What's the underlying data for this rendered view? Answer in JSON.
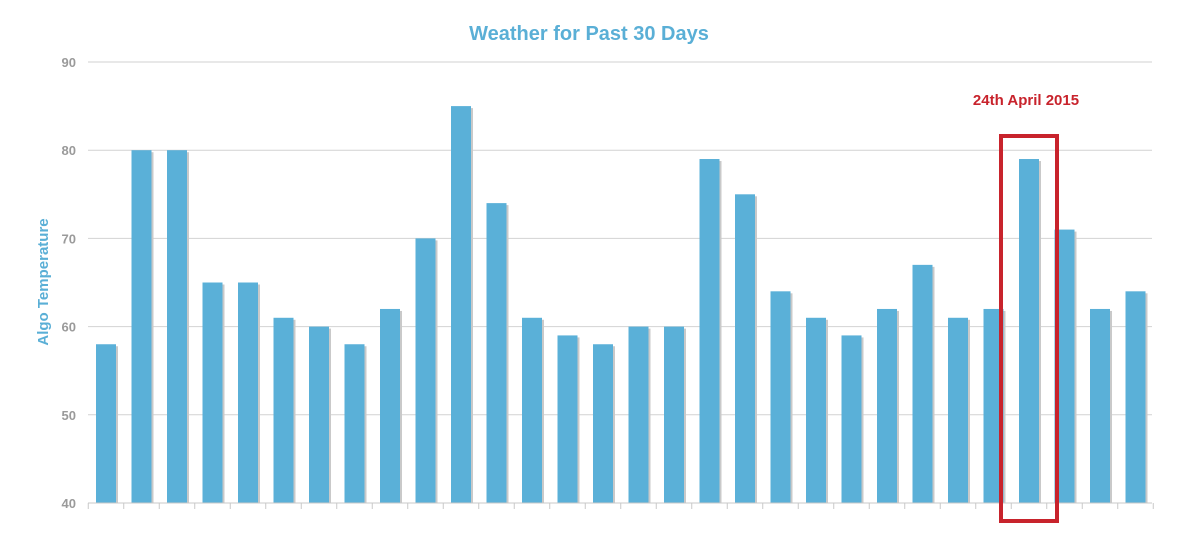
{
  "chart_data": {
    "type": "bar",
    "title": "Weather for Past 30 Days",
    "xlabel": "",
    "ylabel": "Algo Temperature",
    "ylim": [
      40,
      90
    ],
    "yticks": [
      40,
      50,
      60,
      70,
      80,
      90
    ],
    "grid": true,
    "values": [
      58,
      80,
      80,
      65,
      65,
      61,
      60,
      58,
      62,
      70,
      85,
      74,
      61,
      59,
      58,
      60,
      60,
      79,
      75,
      64,
      61,
      59,
      62,
      67,
      61,
      62,
      79,
      71,
      62,
      64
    ],
    "highlight": {
      "index": 26,
      "label": "24th April 2015"
    },
    "colors": {
      "bar": "#5ab0d8",
      "bar_shadow": "#c9c9c9",
      "grid": "#d2d2d2",
      "title": "#5aafd6",
      "highlight": "#c8232c"
    }
  }
}
